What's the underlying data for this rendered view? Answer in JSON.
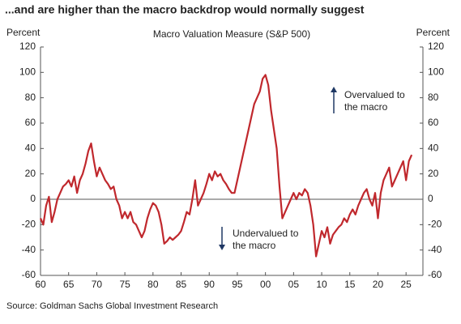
{
  "chart_data": {
    "type": "line",
    "title": "...and are higher than the macro backdrop would normally suggest",
    "subtitle": "Macro Valuation Measure (S&P 500)",
    "ylabel": "Percent",
    "y2label": "Percent",
    "source": "Source: Goldman Sachs Global Investment Research",
    "annotations": [
      {
        "lines": [
          "Overvalued to",
          "the macro"
        ]
      },
      {
        "lines": [
          "Undervalued to",
          "the macro"
        ]
      }
    ],
    "xlim": [
      1960,
      2028
    ],
    "xticks": [
      {
        "value": 1960,
        "label": "60"
      },
      {
        "value": 1965,
        "label": "65"
      },
      {
        "value": 1970,
        "label": "70"
      },
      {
        "value": 1975,
        "label": "75"
      },
      {
        "value": 1980,
        "label": "80"
      },
      {
        "value": 1985,
        "label": "85"
      },
      {
        "value": 1990,
        "label": "90"
      },
      {
        "value": 1995,
        "label": "95"
      },
      {
        "value": 2000,
        "label": "00"
      },
      {
        "value": 2005,
        "label": "05"
      },
      {
        "value": 2010,
        "label": "10"
      },
      {
        "value": 2015,
        "label": "15"
      },
      {
        "value": 2020,
        "label": "20"
      },
      {
        "value": 2025,
        "label": "25"
      }
    ],
    "ylim": [
      -60,
      120
    ],
    "yticks": [
      -60,
      -40,
      -20,
      0,
      20,
      40,
      60,
      80,
      100,
      120
    ],
    "y2lim": [
      -60,
      120
    ],
    "y2ticks": [
      -60,
      -40,
      -20,
      0,
      20,
      40,
      60,
      80,
      100,
      120
    ],
    "grid": false,
    "x": [
      1960,
      1960.5,
      1961,
      1961.5,
      1962,
      1962.5,
      1963,
      1963.5,
      1964,
      1964.5,
      1965,
      1965.5,
      1966,
      1966.5,
      1967,
      1967.5,
      1968,
      1968.5,
      1969,
      1969.5,
      1970,
      1970.5,
      1971,
      1971.5,
      1972,
      1972.5,
      1973,
      1973.5,
      1974,
      1974.5,
      1975,
      1975.5,
      1976,
      1976.5,
      1977,
      1977.5,
      1978,
      1978.5,
      1979,
      1979.5,
      1980,
      1980.5,
      1981,
      1981.5,
      1982,
      1982.5,
      1983,
      1983.5,
      1984,
      1984.5,
      1985,
      1985.5,
      1986,
      1986.5,
      1987,
      1987.5,
      1988,
      1988.5,
      1989,
      1989.5,
      1990,
      1990.5,
      1991,
      1991.5,
      1992,
      1992.5,
      1993,
      1993.5,
      1994,
      1994.5,
      1995,
      1995.5,
      1996,
      1996.5,
      1997,
      1997.5,
      1998,
      1998.5,
      1999,
      1999.5,
      2000,
      2000.5,
      2001,
      2001.5,
      2002,
      2002.5,
      2003,
      2003.5,
      2004,
      2004.5,
      2005,
      2005.5,
      2006,
      2006.5,
      2007,
      2007.5,
      2008,
      2008.5,
      2009,
      2009.5,
      2010,
      2010.5,
      2011,
      2011.5,
      2012,
      2012.5,
      2013,
      2013.5,
      2014,
      2014.5,
      2015,
      2015.5,
      2016,
      2016.5,
      2017,
      2017.5,
      2018,
      2018.5,
      2019,
      2019.5,
      2020,
      2020.5,
      2021,
      2021.5,
      2022,
      2022.5,
      2023,
      2023.5,
      2024,
      2024.5,
      2025,
      2025.5,
      2026
    ],
    "series": [
      {
        "name": "Macro Valuation Measure",
        "color": "#c0282d",
        "values": [
          -15,
          -20,
          -5,
          2,
          -18,
          -10,
          0,
          5,
          10,
          12,
          15,
          10,
          18,
          5,
          15,
          20,
          28,
          38,
          44,
          30,
          18,
          25,
          20,
          15,
          12,
          8,
          10,
          0,
          -5,
          -15,
          -10,
          -15,
          -10,
          -18,
          -20,
          -25,
          -30,
          -25,
          -15,
          -8,
          -3,
          -5,
          -10,
          -20,
          -35,
          -33,
          -30,
          -32,
          -30,
          -28,
          -25,
          -18,
          -10,
          -12,
          0,
          15,
          -5,
          0,
          5,
          12,
          20,
          15,
          22,
          18,
          20,
          15,
          12,
          8,
          5,
          5,
          15,
          25,
          35,
          45,
          55,
          65,
          75,
          80,
          85,
          95,
          98,
          90,
          70,
          55,
          40,
          10,
          -15,
          -10,
          -5,
          0,
          5,
          0,
          5,
          3,
          8,
          5,
          -5,
          -20,
          -45,
          -35,
          -25,
          -30,
          -22,
          -35,
          -28,
          -25,
          -22,
          -20,
          -15,
          -18,
          -12,
          -8,
          -12,
          -5,
          0,
          5,
          8,
          0,
          -5,
          5,
          -15,
          5,
          15,
          20,
          25,
          10,
          15,
          20,
          25,
          30,
          15,
          30,
          35
        ]
      }
    ]
  }
}
